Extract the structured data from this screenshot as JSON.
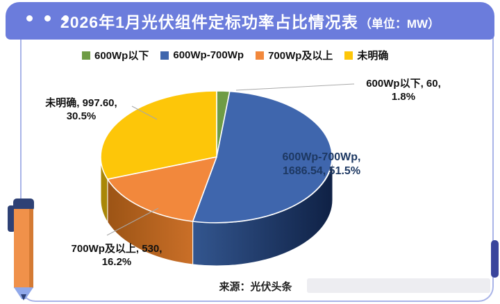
{
  "header": {
    "title": "2026年1月光伏组件定标功率占比情况表",
    "unit": "（单位：MW）"
  },
  "chart_data": {
    "type": "pie",
    "style": "3d",
    "title": "2026年1月光伏组件定标功率占比情况表",
    "unit": "MW",
    "start_angle_deg": 0,
    "direction": "clockwise",
    "legend_position": "top",
    "slices": [
      {
        "name": "600Wp以下",
        "value": 60,
        "pct": 1.8,
        "color": "#6f9c45"
      },
      {
        "name": "600Wp-700Wp",
        "value": 1686.54,
        "pct": 51.5,
        "color": "#3f66ad",
        "side": [
          "#33568f",
          "#0f2145"
        ]
      },
      {
        "name": "700Wp及以上",
        "value": 530,
        "pct": 16.2,
        "color": "#f2883c",
        "side": [
          "#9c5415",
          "#ca6f28"
        ]
      },
      {
        "name": "未明确",
        "value": 997.6,
        "pct": 30.5,
        "color": "#fdc609",
        "side": [
          "#a98708",
          "#a98708"
        ]
      }
    ]
  },
  "callouts": {
    "green": {
      "line1": "600Wp以下, 60,",
      "line2": "1.8%"
    },
    "blue": {
      "line1": "600Wp-700Wp,",
      "line2": "1686.54, 51.5%"
    },
    "orange": {
      "line1": "700Wp及以上, 530,",
      "line2": "16.2%"
    },
    "yellow": {
      "line1": "未明确, 997.60,",
      "line2": "30.5%"
    }
  },
  "source": "来源：光伏头条",
  "theme": {
    "header_bg": "#6b7cdc",
    "border": "#a9b4e8",
    "scrollbar": "#3a459c",
    "label_dark_blue": "#1d3862",
    "text": "#111111",
    "pen_body": "#f0914a",
    "pen_cap": "#2e4175",
    "pen_tip": "#90a8ea"
  }
}
